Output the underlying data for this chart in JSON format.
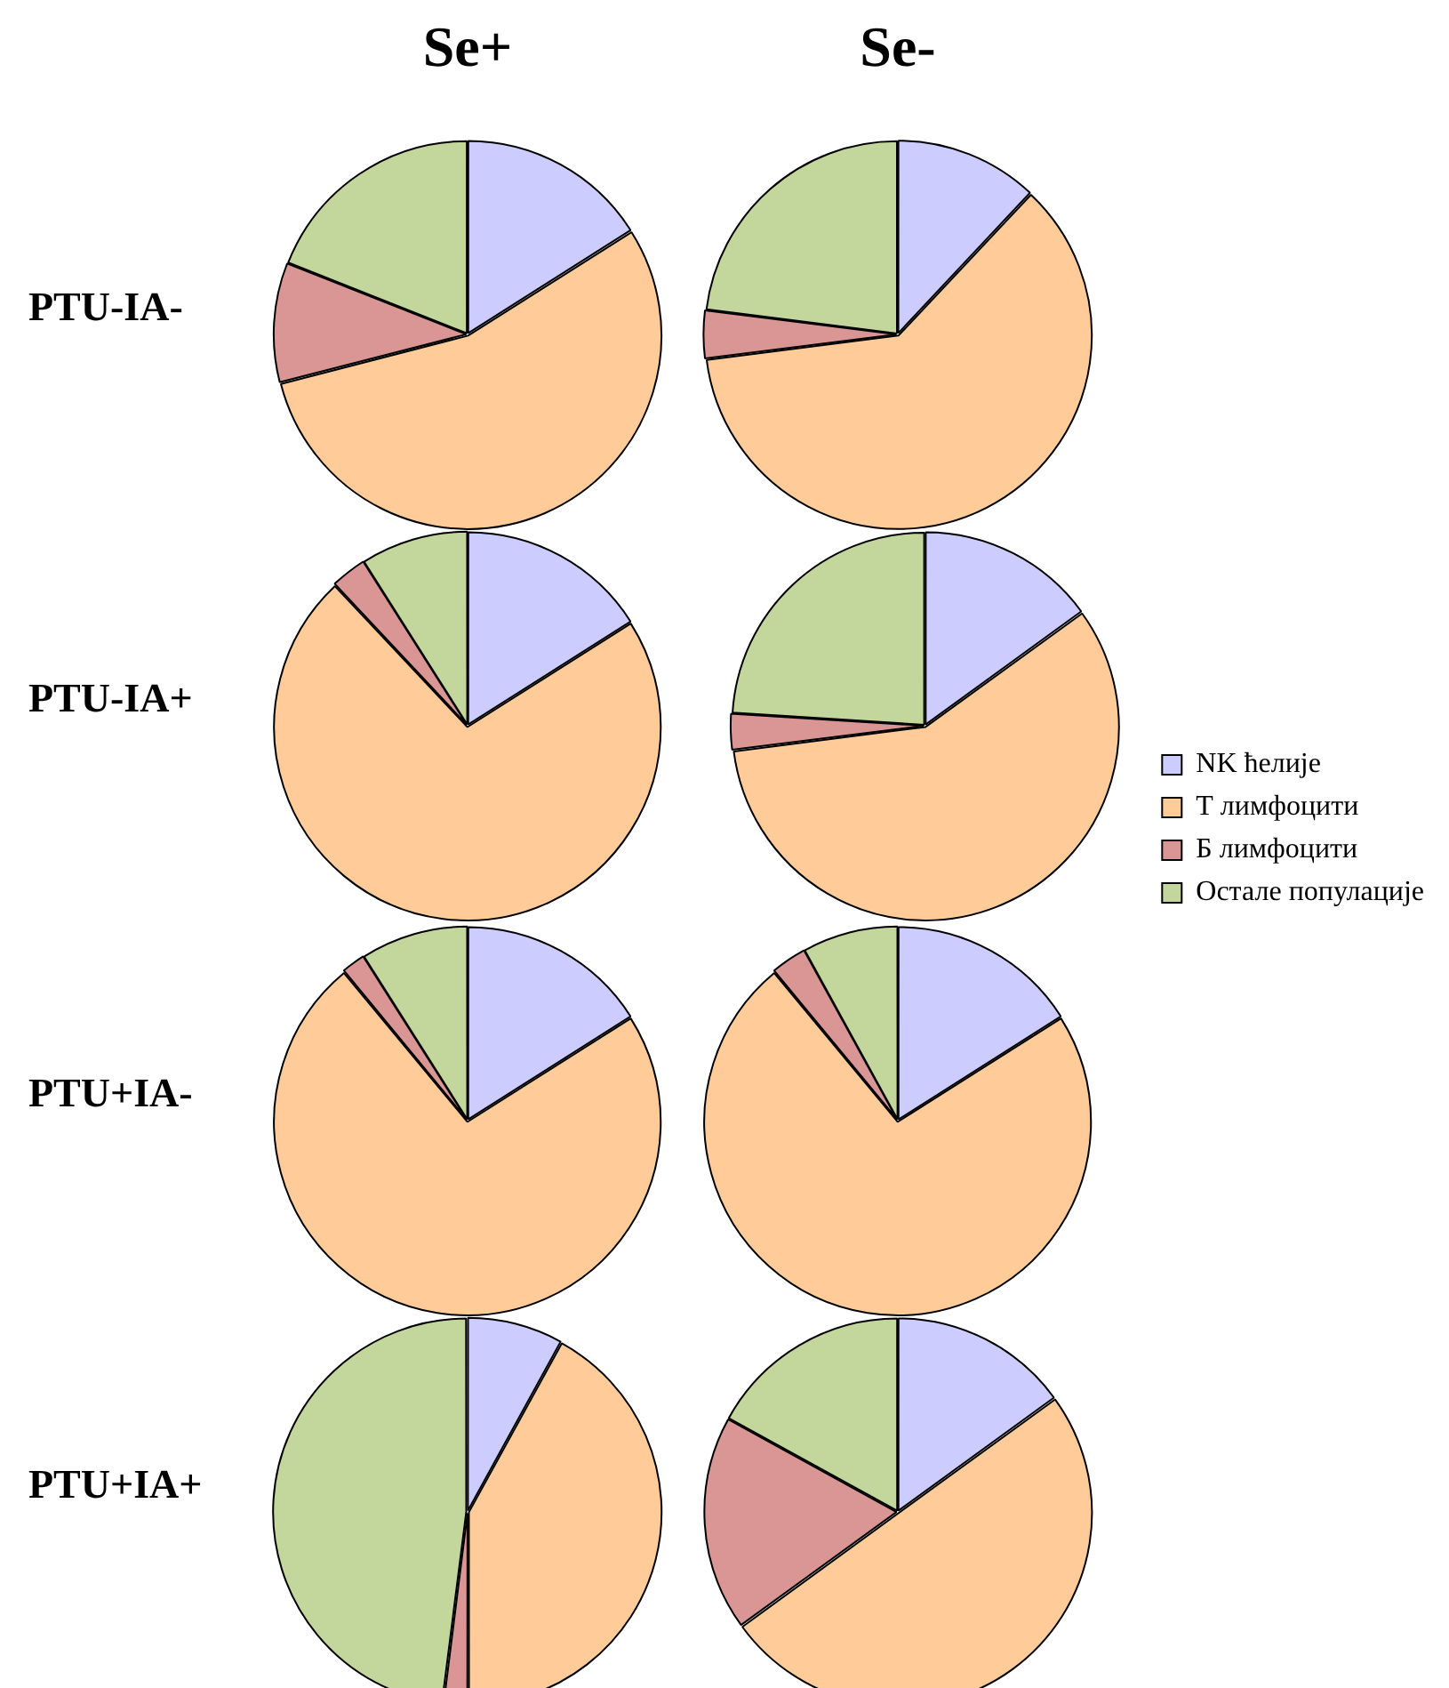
{
  "chart_data": [
    {
      "type": "pie",
      "title": "Se+",
      "ylabel": "PTU-IA-",
      "categories": [
        null,
        null,
        null,
        null
      ],
      "values": [
        16,
        55,
        10,
        19
      ],
      "colors": [
        "#ccccff",
        "#ffcc99",
        "#d99694",
        "#c3d69b"
      ]
    },
    {
      "type": "pie",
      "title": "Se-",
      "categories": [
        null,
        null,
        null,
        null
      ],
      "values": [
        12,
        61,
        4,
        23
      ],
      "colors": [
        "#ccccff",
        "#ffcc99",
        "#d99694",
        "#c3d69b"
      ]
    },
    {
      "type": "pie",
      "ylabel": "PTU-IA+",
      "categories": [
        null,
        null,
        null,
        null
      ],
      "values": [
        16,
        72,
        3,
        9
      ],
      "colors": [
        "#ccccff",
        "#ffcc99",
        "#d99694",
        "#c3d69b"
      ]
    },
    {
      "type": "pie",
      "legend": "right",
      "categories": [
        "NK ћелије",
        "Т лимфоцити",
        "Б лимфоцити",
        "Остале популације"
      ],
      "values": [
        15,
        58,
        3,
        24
      ],
      "colors": [
        "#ccccff",
        "#ffcc99",
        "#d99694",
        "#c3d69b"
      ]
    },
    {
      "type": "pie",
      "ylabel": "PTU+IA-",
      "categories": [
        null,
        null,
        null,
        null
      ],
      "values": [
        16,
        73,
        2,
        9
      ],
      "colors": [
        "#ccccff",
        "#ffcc99",
        "#d99694",
        "#c3d69b"
      ]
    },
    {
      "type": "pie",
      "categories": [
        null,
        null,
        null,
        null
      ],
      "values": [
        16,
        73,
        3,
        8
      ],
      "colors": [
        "#ccccff",
        "#ffcc99",
        "#d99694",
        "#c3d69b"
      ]
    },
    {
      "type": "pie",
      "ylabel": "PTU+IA+",
      "categories": [
        null,
        null,
        null,
        null
      ],
      "values": [
        8,
        42,
        2,
        48
      ],
      "colors": [
        "#ccccff",
        "#ffcc99",
        "#d99694",
        "#c3d69b"
      ]
    },
    {
      "type": "pie",
      "categories": [
        null,
        null,
        null,
        null
      ],
      "values": [
        15,
        50,
        18,
        17
      ],
      "colors": [
        "#ccccff",
        "#ffcc99",
        "#d99694",
        "#c3d69b"
      ]
    }
  ]
}
